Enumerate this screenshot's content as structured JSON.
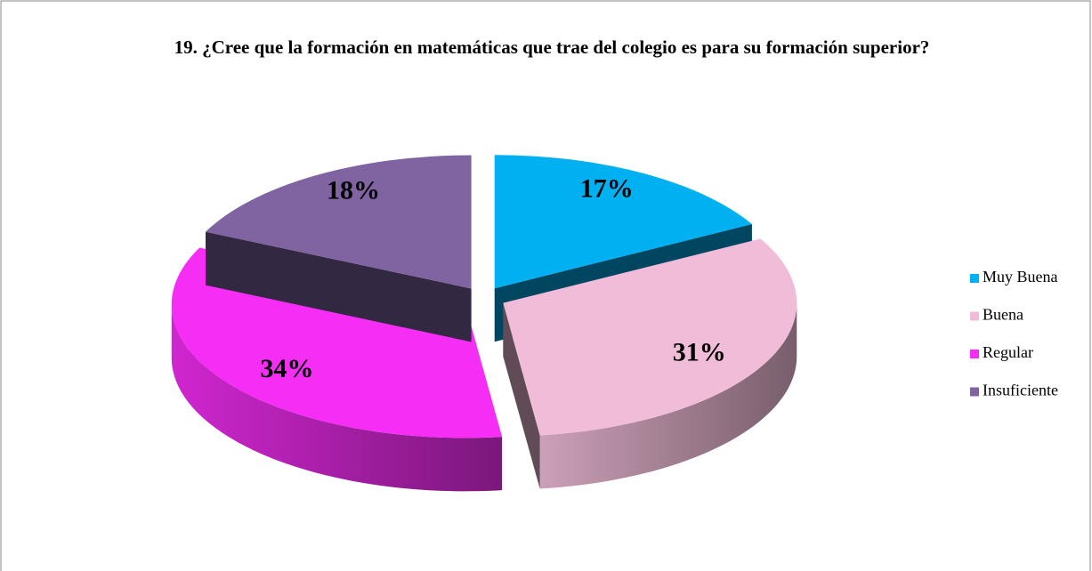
{
  "chart_data": {
    "type": "pie",
    "pie_style": "3d-exploded",
    "title": "19. ¿Cree que la formación en matemáticas que trae del colegio es para su formación superior?",
    "categories": [
      "Muy Buena",
      "Buena",
      "Regular",
      "Insuficiente"
    ],
    "values": [
      17,
      31,
      34,
      18
    ],
    "value_labels": [
      "17%",
      "31%",
      "34%",
      "18%"
    ],
    "colors": [
      "#00b0f0",
      "#f0bcd8",
      "#f52df5",
      "#8064a2"
    ],
    "legend": "right"
  }
}
